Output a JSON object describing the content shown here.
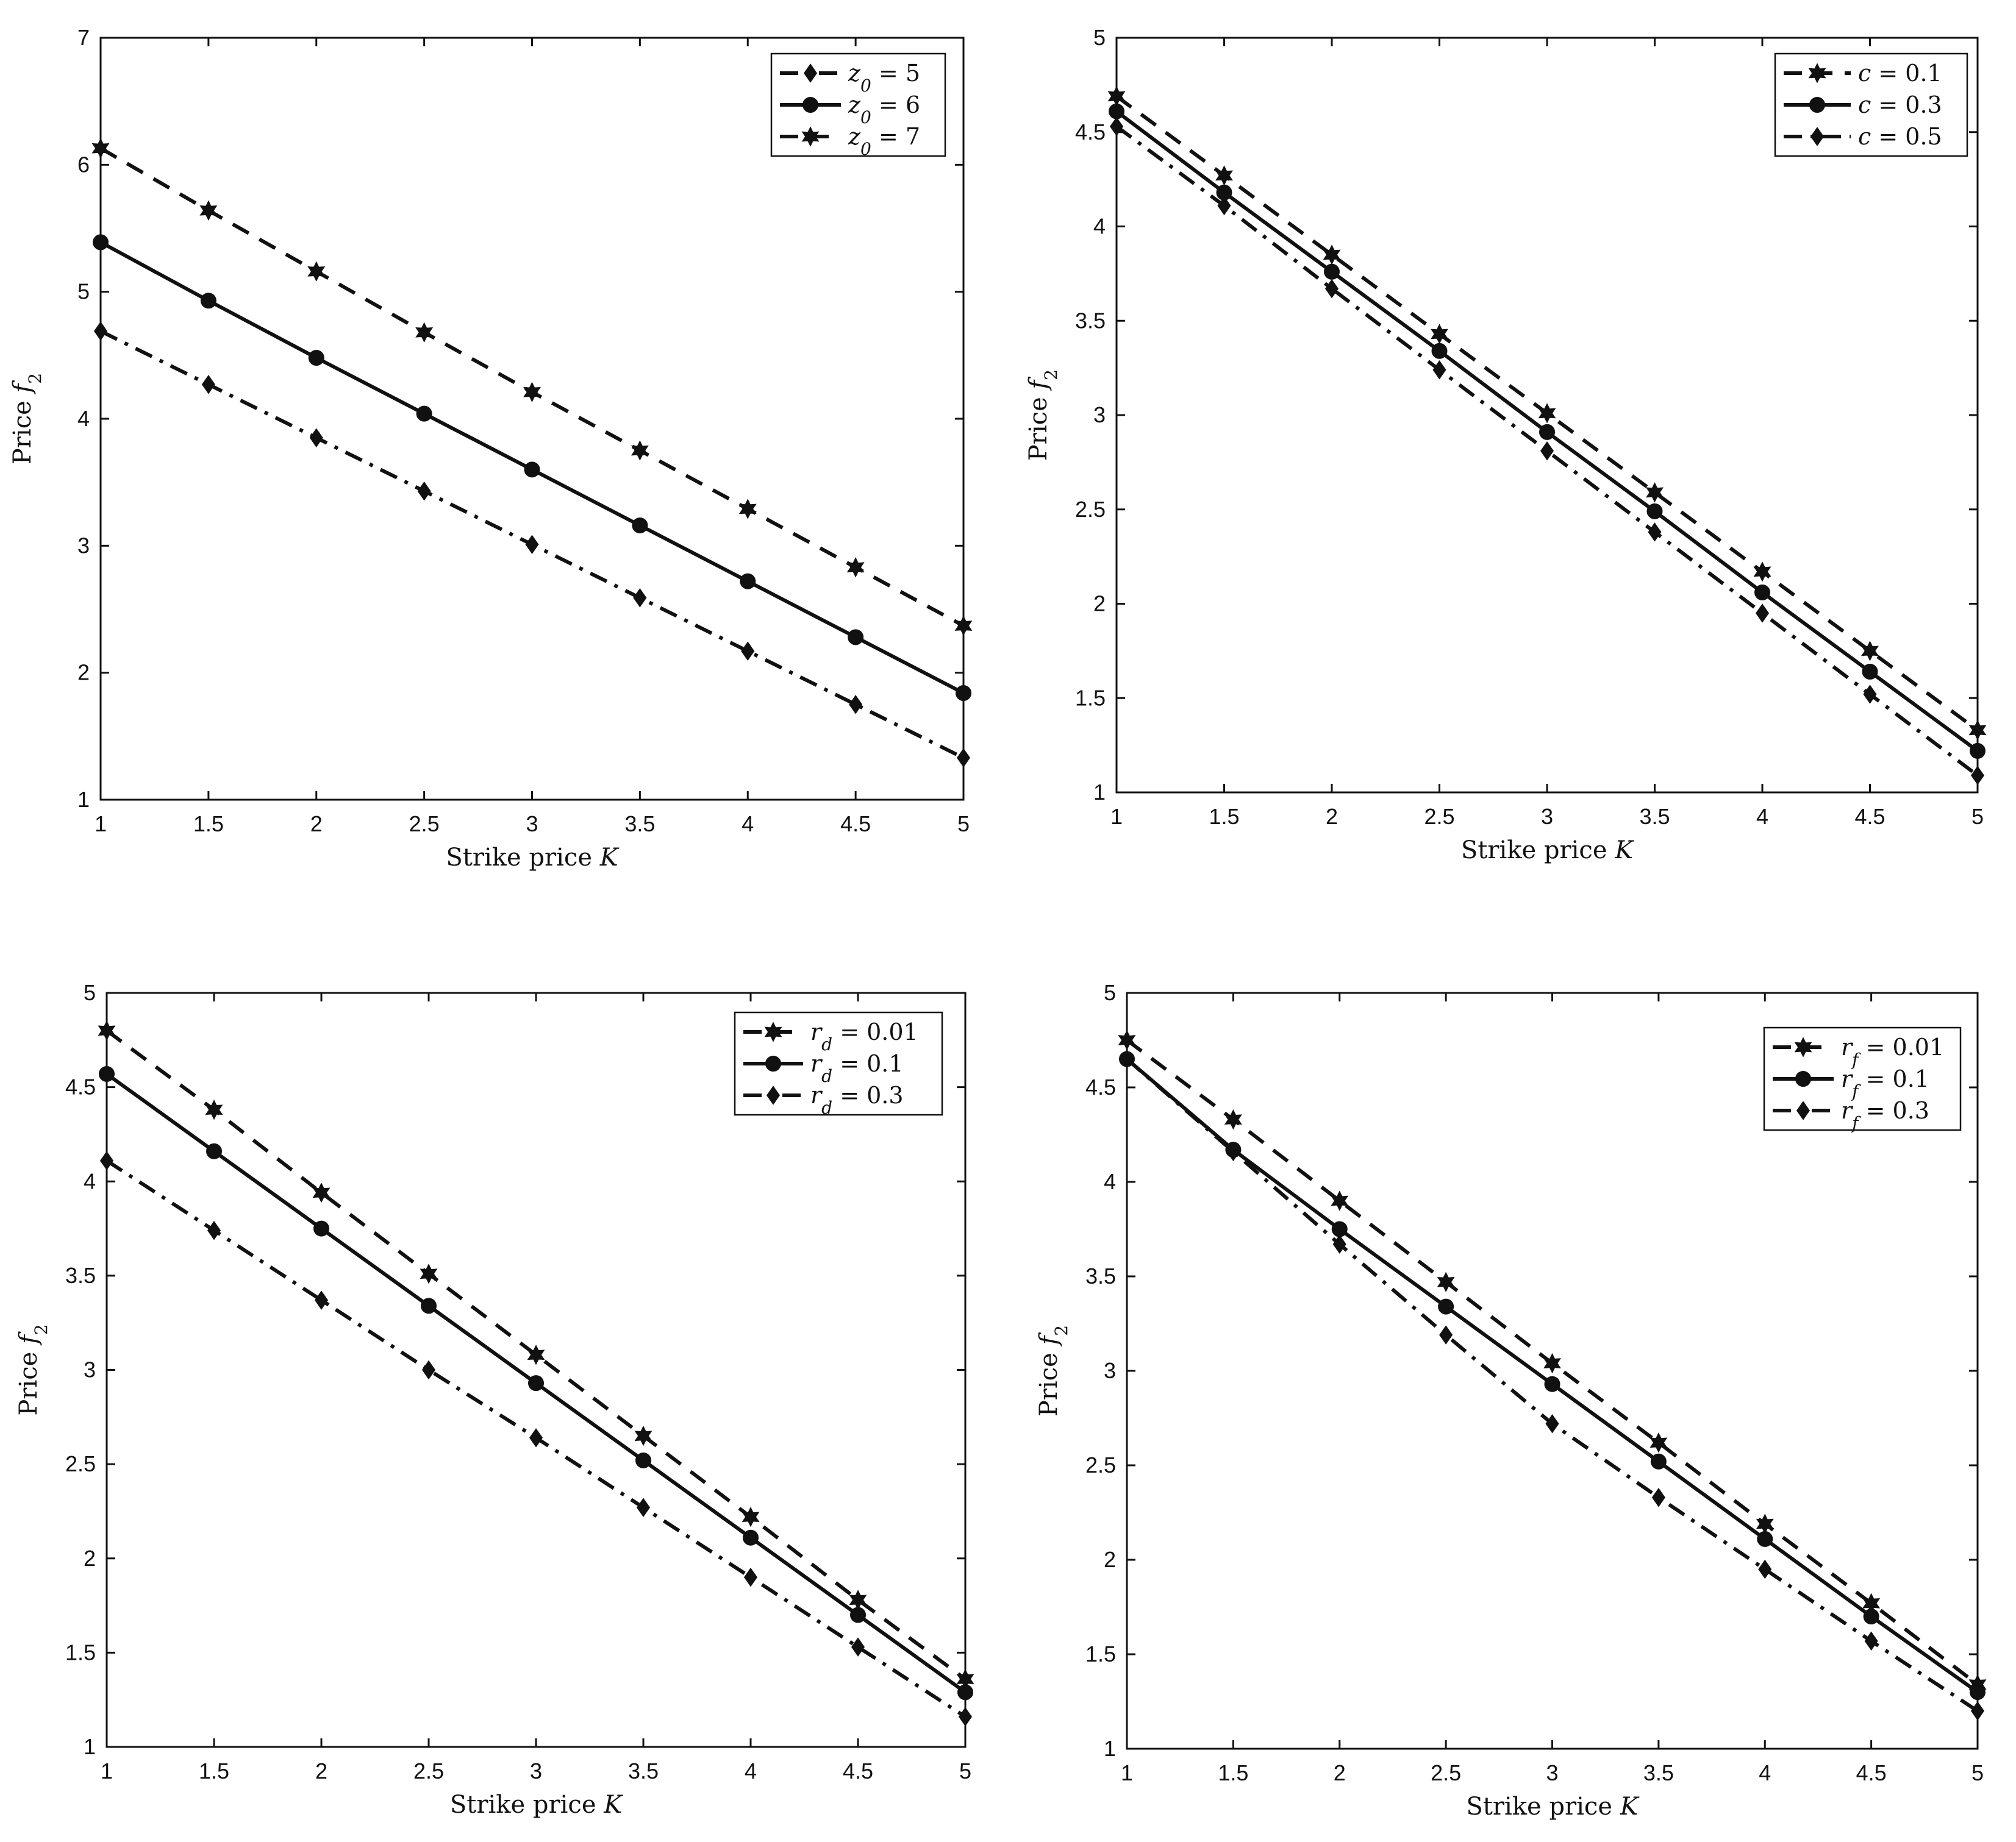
{
  "chart_data": [
    {
      "type": "line",
      "title": "",
      "xlabel": "Strike price K",
      "ylabel": "Price f2",
      "x": [
        1,
        1.5,
        2,
        2.5,
        3,
        3.5,
        4,
        4.5,
        5
      ],
      "xlim": [
        1,
        5
      ],
      "ylim": [
        1,
        7
      ],
      "xticks": [
        "1",
        "1.5",
        "2",
        "2.5",
        "3",
        "3.5",
        "4",
        "4.5",
        "5"
      ],
      "yticks": [
        "1",
        "2",
        "3",
        "4",
        "5",
        "6",
        "7"
      ],
      "grid": false,
      "legend_position": "top-right",
      "series": [
        {
          "name": "z0 = 5",
          "sym": "z",
          "sub": "0",
          "val": "5",
          "line": "dashdot",
          "marker": "diamond",
          "values": [
            4.69,
            4.27,
            3.85,
            3.43,
            3.01,
            2.59,
            2.17,
            1.75,
            1.33
          ]
        },
        {
          "name": "z0 = 6",
          "sym": "z",
          "sub": "0",
          "val": "6",
          "line": "solid",
          "marker": "circle",
          "values": [
            5.39,
            4.93,
            4.48,
            4.04,
            3.6,
            3.16,
            2.72,
            2.28,
            1.84
          ]
        },
        {
          "name": "z0 = 7",
          "sym": "z",
          "sub": "0",
          "val": "7",
          "line": "dashed",
          "marker": "hexagram",
          "values": [
            6.13,
            5.64,
            5.16,
            4.68,
            4.21,
            3.75,
            3.29,
            2.83,
            2.37
          ]
        }
      ]
    },
    {
      "type": "line",
      "title": "",
      "xlabel": "Strike price K",
      "ylabel": "Price f2",
      "x": [
        1,
        1.5,
        2,
        2.5,
        3,
        3.5,
        4,
        4.5,
        5
      ],
      "xlim": [
        1,
        5
      ],
      "ylim": [
        1,
        5
      ],
      "xticks": [
        "1",
        "1.5",
        "2",
        "2.5",
        "3",
        "3.5",
        "4",
        "4.5",
        "5"
      ],
      "yticks": [
        "1",
        "1.5",
        "2",
        "2.5",
        "3",
        "3.5",
        "4",
        "4.5",
        "5"
      ],
      "grid": false,
      "legend_position": "top-right",
      "series": [
        {
          "name": "c = 0.1",
          "sym": "c",
          "sub": "",
          "val": "0.1",
          "line": "dashed",
          "marker": "hexagram",
          "values": [
            4.69,
            4.27,
            3.85,
            3.43,
            3.01,
            2.59,
            2.17,
            1.75,
            1.33
          ]
        },
        {
          "name": "c = 0.3",
          "sym": "c",
          "sub": "",
          "val": "0.3",
          "line": "solid",
          "marker": "circle",
          "values": [
            4.61,
            4.18,
            3.76,
            3.34,
            2.91,
            2.49,
            2.06,
            1.64,
            1.22
          ]
        },
        {
          "name": "c = 0.5",
          "sym": "c",
          "sub": "",
          "val": "0.5",
          "line": "dashdot",
          "marker": "diamond",
          "values": [
            4.53,
            4.11,
            3.67,
            3.24,
            2.81,
            2.38,
            1.95,
            1.52,
            1.09
          ]
        }
      ]
    },
    {
      "type": "line",
      "title": "",
      "xlabel": "Strike price K",
      "ylabel": "Price f2",
      "x": [
        1,
        1.5,
        2,
        2.5,
        3,
        3.5,
        4,
        4.5,
        5
      ],
      "xlim": [
        1,
        5
      ],
      "ylim": [
        1,
        5
      ],
      "xticks": [
        "1",
        "1.5",
        "2",
        "2.5",
        "3",
        "3.5",
        "4",
        "4.5",
        "5"
      ],
      "yticks": [
        "1",
        "1.5",
        "2",
        "2.5",
        "3",
        "3.5",
        "4",
        "4.5",
        "5"
      ],
      "grid": false,
      "legend_position": "top-right",
      "series": [
        {
          "name": "rd = 0.01",
          "sym": "r",
          "sub": "d",
          "val": "0.01",
          "line": "dashed",
          "marker": "hexagram",
          "values": [
            4.8,
            4.38,
            3.94,
            3.51,
            3.08,
            2.65,
            2.22,
            1.78,
            1.36
          ]
        },
        {
          "name": "rd = 0.1",
          "sym": "r",
          "sub": "d",
          "val": "0.1",
          "line": "solid",
          "marker": "circle",
          "values": [
            4.57,
            4.16,
            3.75,
            3.34,
            2.93,
            2.52,
            2.11,
            1.7,
            1.29
          ]
        },
        {
          "name": "rd = 0.3",
          "sym": "r",
          "sub": "d",
          "val": "0.3",
          "line": "dashdot",
          "marker": "diamond",
          "values": [
            4.11,
            3.74,
            3.37,
            3.0,
            2.64,
            2.27,
            1.9,
            1.53,
            1.16
          ]
        }
      ]
    },
    {
      "type": "line",
      "title": "",
      "xlabel": "Strike price K",
      "ylabel": "Price f2",
      "x": [
        1,
        1.5,
        2,
        2.5,
        3,
        3.5,
        4,
        4.5,
        5
      ],
      "xlim": [
        1,
        5
      ],
      "ylim": [
        1,
        5
      ],
      "xticks": [
        "1",
        "1.5",
        "2",
        "2.5",
        "3",
        "3.5",
        "4",
        "4.5",
        "5"
      ],
      "yticks": [
        "1",
        "1.5",
        "2",
        "2.5",
        "3",
        "3.5",
        "4",
        "4.5",
        "5"
      ],
      "grid": false,
      "legend_position": "top-right",
      "series": [
        {
          "name": "rf = 0.01",
          "sym": "r",
          "sub": "f",
          "val": "0.01",
          "line": "dashed",
          "marker": "hexagram",
          "values": [
            4.75,
            4.33,
            3.9,
            3.47,
            3.04,
            2.62,
            2.19,
            1.77,
            1.34
          ]
        },
        {
          "name": "rf = 0.1",
          "sym": "r",
          "sub": "f",
          "val": "0.1",
          "line": "solid",
          "marker": "circle",
          "values": [
            4.65,
            4.17,
            3.75,
            3.34,
            2.93,
            2.52,
            2.11,
            1.7,
            1.3
          ]
        },
        {
          "name": "rf = 0.3",
          "sym": "r",
          "sub": "f",
          "val": "0.3",
          "line": "dashdot",
          "marker": "diamond",
          "values": [
            4.65,
            4.16,
            3.67,
            3.19,
            2.72,
            2.33,
            1.95,
            1.57,
            1.2
          ]
        }
      ]
    }
  ]
}
